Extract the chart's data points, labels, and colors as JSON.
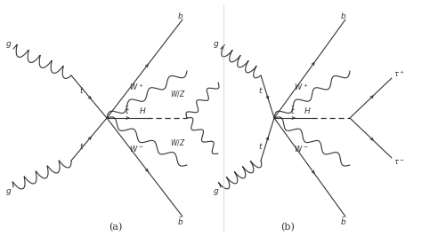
{
  "bg_color": "#ffffff",
  "line_color": "#333333",
  "fig_width": 5.02,
  "fig_height": 2.66,
  "dpi": 100,
  "caption_a": "(a)",
  "caption_b": "(b)"
}
